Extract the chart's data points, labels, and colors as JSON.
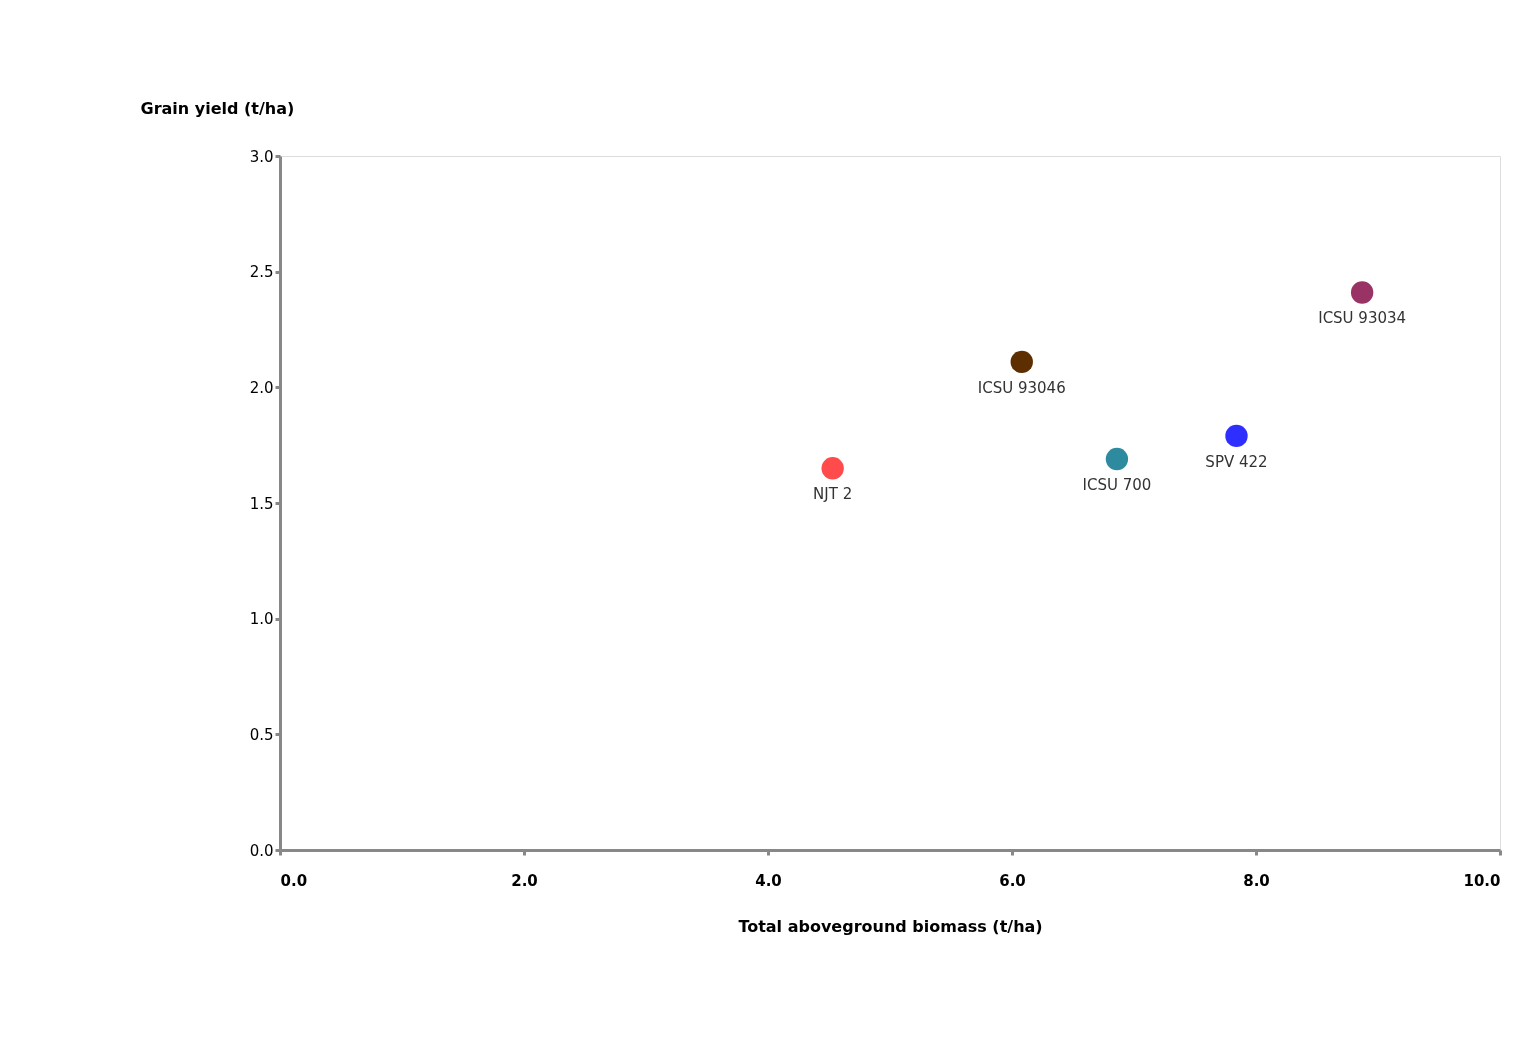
{
  "chart_data": {
    "type": "scatter",
    "xlabel": "Total aboveground biomass (t/ha)",
    "ylabel": "Grain yield (t/ha)",
    "xlim": [
      0,
      10
    ],
    "ylim": [
      0,
      3
    ],
    "xticks": [
      {
        "value": 0,
        "label": "0.0"
      },
      {
        "value": 2,
        "label": "2.0"
      },
      {
        "value": 4,
        "label": "4.0"
      },
      {
        "value": 6,
        "label": "6.0"
      },
      {
        "value": 8,
        "label": "8.0"
      },
      {
        "value": 10,
        "label": "10.0"
      }
    ],
    "yticks": [
      {
        "value": 0,
        "label": "0.0"
      },
      {
        "value": 0.5,
        "label": "0.5"
      },
      {
        "value": 1,
        "label": "1.0"
      },
      {
        "value": 1.5,
        "label": "1.5"
      },
      {
        "value": 2,
        "label": "2.0"
      },
      {
        "value": 2.5,
        "label": "2.5"
      },
      {
        "value": 3,
        "label": "3.0"
      }
    ],
    "grid": false,
    "legend": false,
    "marker": "circle",
    "series": [
      {
        "name": "NJT 2",
        "color": "#ff4b4b",
        "x": [
          4.53
        ],
        "values": [
          1.65
        ]
      },
      {
        "name": "ICSU 93046",
        "color": "#5c2e00",
        "x": [
          6.08
        ],
        "values": [
          2.11
        ]
      },
      {
        "name": "ICSU 700",
        "color": "#2e8a9e",
        "x": [
          6.86
        ],
        "values": [
          1.69
        ]
      },
      {
        "name": "SPV 422",
        "color": "#2e2eff",
        "x": [
          7.84
        ],
        "values": [
          1.79
        ]
      },
      {
        "name": "ICSU 93034",
        "color": "#993366",
        "x": [
          8.87
        ],
        "values": [
          2.41
        ]
      }
    ]
  }
}
